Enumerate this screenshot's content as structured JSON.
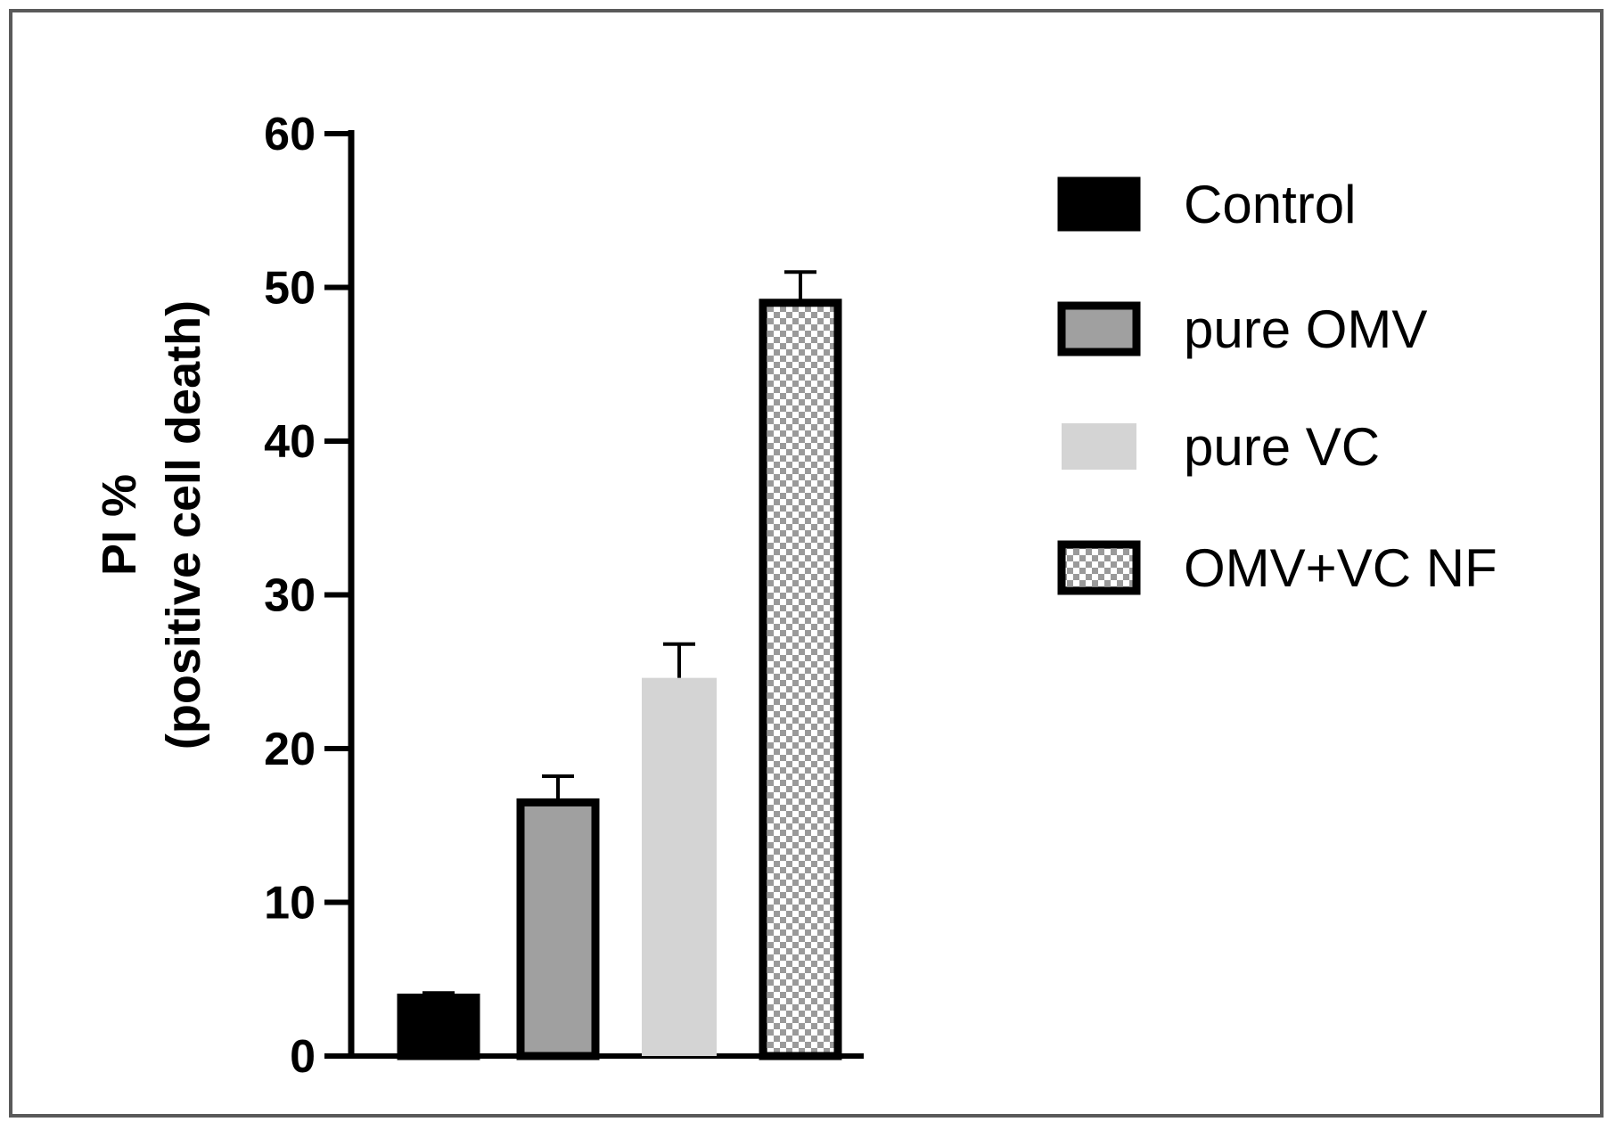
{
  "chart_data": {
    "type": "bar",
    "categories": [
      "Control",
      "pure OMV",
      "pure VC",
      "OMV+VC NF"
    ],
    "values": [
      3.8,
      16.5,
      24.6,
      49.0
    ],
    "errors": [
      0.3,
      1.7,
      2.2,
      2.0
    ],
    "ylabel": [
      "PI %",
      "(positive cell death)"
    ],
    "xlabel": "",
    "ylim": [
      0,
      60
    ],
    "yticks": [
      0,
      10,
      20,
      30,
      40,
      50,
      60
    ],
    "grid": false,
    "legend_placement": "right",
    "legend": [
      {
        "label": "Control",
        "fill": "#000000",
        "pattern": "solid",
        "outlined": true
      },
      {
        "label": "pure OMV",
        "fill": "#a0a0a0",
        "pattern": "solid",
        "outlined": true
      },
      {
        "label": "pure VC",
        "fill": "#d4d4d4",
        "pattern": "solid",
        "outlined": false
      },
      {
        "label": "OMV+VC NF",
        "fill": "#ffffff",
        "pattern": "checker",
        "outlined": true
      }
    ]
  }
}
